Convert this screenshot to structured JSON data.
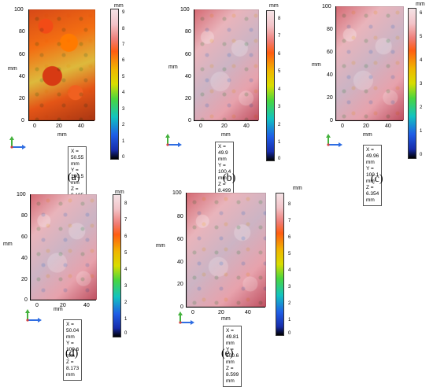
{
  "units": "mm",
  "panels": [
    {
      "id": "a",
      "caption": "(a)",
      "map_y_ticks": [
        "100",
        "80",
        "60",
        "40",
        "20",
        "0"
      ],
      "map_x_ticks": [
        "0",
        "20",
        "40"
      ],
      "colorbar_ticks": [
        "9",
        "8",
        "7",
        "6",
        "5",
        "4",
        "3",
        "2",
        "1",
        "0"
      ],
      "info": {
        "x": "X = 50.55 mm",
        "y": "Y = 100.5 mm",
        "z": "Z = 9.195 mm"
      }
    },
    {
      "id": "b",
      "caption": "(b)",
      "map_y_ticks": [
        "100",
        "80",
        "60",
        "40",
        "20",
        "0"
      ],
      "map_x_ticks": [
        "0",
        "20",
        "40"
      ],
      "colorbar_ticks": [
        "8",
        "7",
        "6",
        "5",
        "4",
        "3",
        "2",
        "1",
        "0"
      ],
      "info": {
        "x": "X = 49.9 mm",
        "y": "Y = 100.4 mm",
        "z": "Z = 8.499 mm"
      }
    },
    {
      "id": "c",
      "caption": "(c)",
      "map_y_ticks": [
        "100",
        "80",
        "60",
        "40",
        "20",
        "0"
      ],
      "map_x_ticks": [
        "0",
        "20",
        "40"
      ],
      "colorbar_ticks": [
        "6",
        "5",
        "4",
        "3",
        "2",
        "1",
        "0"
      ],
      "info": {
        "x": "X = 49.96 mm",
        "y": "Y = 100.1 mm",
        "z": "Z = 6.354 mm"
      }
    },
    {
      "id": "d",
      "caption": "(d)",
      "map_y_ticks": [
        "100",
        "80",
        "60",
        "40",
        "20",
        "0"
      ],
      "map_x_ticks": [
        "0",
        "20",
        "40"
      ],
      "colorbar_ticks": [
        "8",
        "7",
        "6",
        "5",
        "4",
        "3",
        "2",
        "1",
        "0"
      ],
      "info": {
        "x": "X = 50.04 mm",
        "y": "Y = 100.6 mm",
        "z": "Z = 8.173 mm"
      }
    },
    {
      "id": "e",
      "caption": "(e)",
      "map_y_ticks": [
        "100",
        "80",
        "60",
        "40",
        "20",
        "0"
      ],
      "map_x_ticks": [
        "0",
        "20",
        "40"
      ],
      "colorbar_ticks": [
        "8",
        "7",
        "6",
        "5",
        "4",
        "3",
        "2",
        "1",
        "0"
      ],
      "info": {
        "x": "X = 49.81 mm",
        "y": "Y = 100.6 mm",
        "z": "Z = 8.599 mm"
      }
    }
  ]
}
